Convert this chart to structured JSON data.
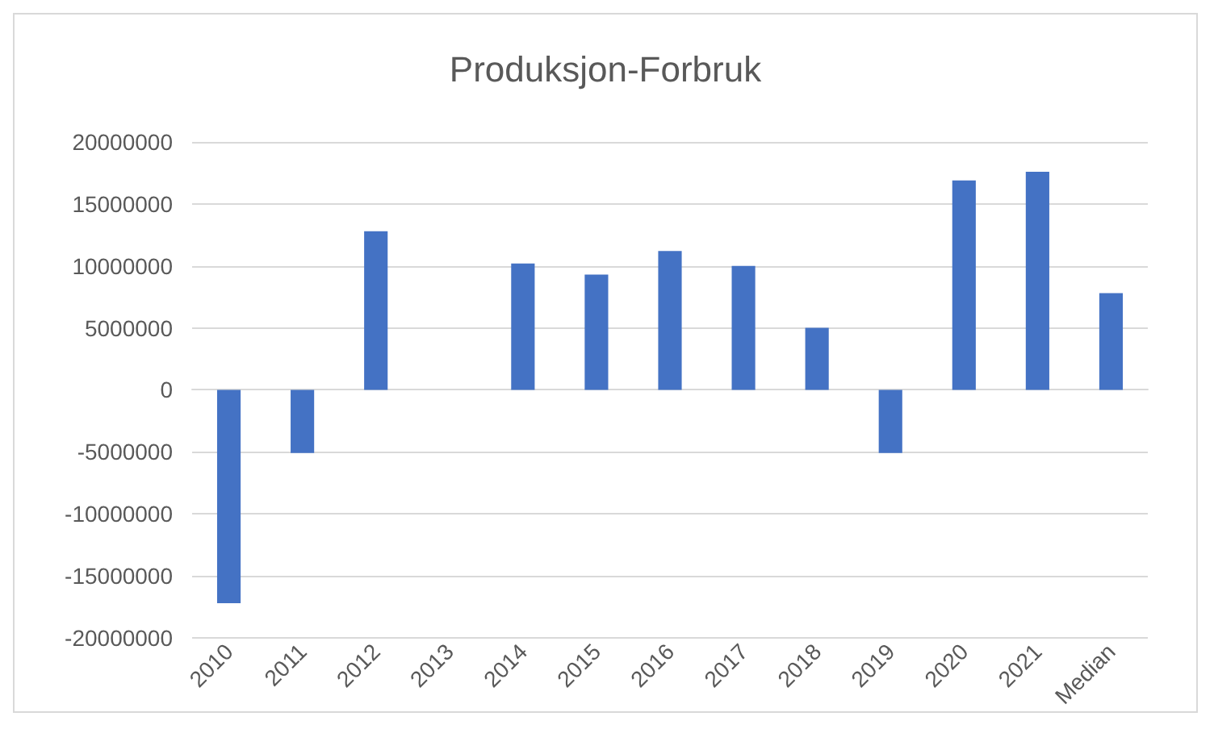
{
  "chart_data": {
    "type": "bar",
    "title": "Produksjon-Forbruk",
    "categories": [
      "2010",
      "2011",
      "2012",
      "2013",
      "2014",
      "2015",
      "2016",
      "2017",
      "2018",
      "2019",
      "2020",
      "2021",
      "Median"
    ],
    "values": [
      -17200000,
      -5100000,
      12800000,
      0,
      10200000,
      9300000,
      11200000,
      10000000,
      5000000,
      -5100000,
      16900000,
      17600000,
      7800000
    ],
    "color": "#4472c4",
    "ylim": [
      -20000000,
      20000000
    ],
    "yticks": [
      -20000000,
      -15000000,
      -10000000,
      -5000000,
      0,
      5000000,
      10000000,
      15000000,
      20000000
    ],
    "grid": "y"
  }
}
